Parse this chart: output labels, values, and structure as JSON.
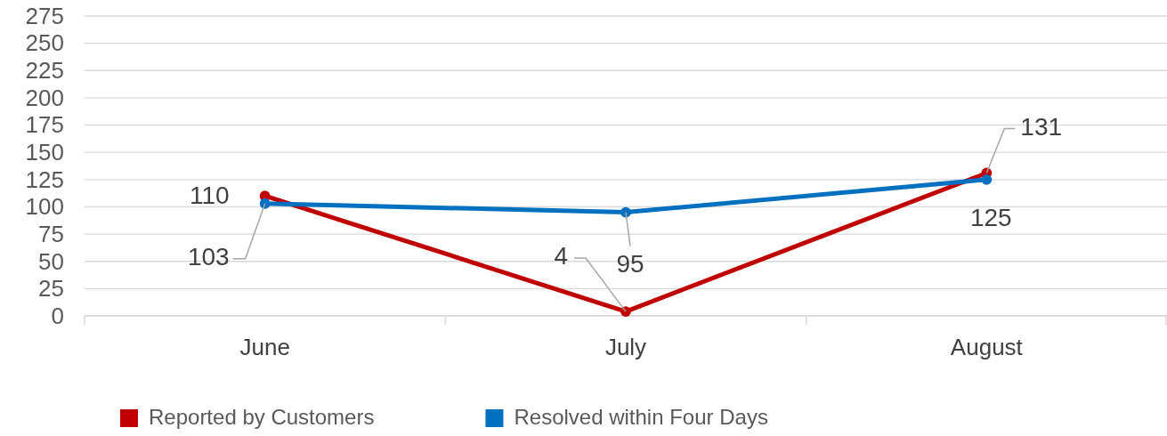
{
  "chart_data": {
    "type": "line",
    "categories": [
      "June",
      "July",
      "August"
    ],
    "series": [
      {
        "name": "Reported by Customers",
        "color": "#c00000",
        "values": [
          110,
          4,
          131
        ]
      },
      {
        "name": "Resolved within Four Days",
        "color": "#0070c0",
        "values": [
          103,
          95,
          125
        ]
      }
    ],
    "ylim": [
      0,
      275
    ],
    "yticks": [
      0,
      25,
      50,
      75,
      100,
      125,
      150,
      175,
      200,
      225,
      250,
      275
    ],
    "grid": "y",
    "legend": "bottom",
    "marker": "circle",
    "line_style": "solid",
    "data_labels": true
  }
}
